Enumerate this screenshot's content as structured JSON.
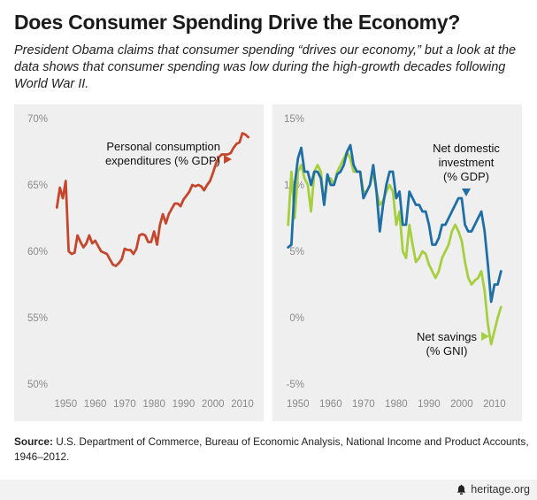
{
  "header": {
    "title": "Does Consumer Spending Drive the Economy?",
    "subtitle": "President Obama claims that consumer spending “drives our economy,” but a look at the data shows that consumer spending was low during the high-growth decades following World War II."
  },
  "source": {
    "label": "Source:",
    "text": "U.S. Department of Commerce, Bureau of Economic Analysis, National Income and Product Accounts, 1946–2012."
  },
  "footer": {
    "brand": "heritage.org",
    "logo_icon": "bell-icon"
  },
  "colors": {
    "pce": "#c4472d",
    "investment": "#1f6fa6",
    "savings": "#a6cf3f",
    "panel": "#efefef",
    "tick": "#8a8a8a"
  },
  "chart_data": [
    {
      "type": "line",
      "title": "",
      "xlabel": "",
      "ylabel": "",
      "xlim": [
        1946,
        2013
      ],
      "ylim": [
        50,
        70
      ],
      "yticks": [
        50,
        55,
        60,
        65,
        70
      ],
      "ytick_labels": [
        "50%",
        "55%",
        "60%",
        "65%",
        "70%"
      ],
      "xticks": [
        1950,
        1960,
        1970,
        1980,
        1990,
        2000,
        2010
      ],
      "xtick_labels": [
        "1950",
        "1960",
        "1970",
        "1980",
        "1990",
        "2000",
        "2010"
      ],
      "grid": false,
      "x": [
        1947,
        1948,
        1949,
        1950,
        1951,
        1952,
        1953,
        1954,
        1955,
        1956,
        1957,
        1958,
        1959,
        1960,
        1961,
        1962,
        1963,
        1964,
        1965,
        1966,
        1967,
        1968,
        1969,
        1970,
        1971,
        1972,
        1973,
        1974,
        1975,
        1976,
        1977,
        1978,
        1979,
        1980,
        1981,
        1982,
        1983,
        1984,
        1985,
        1986,
        1987,
        1988,
        1989,
        1990,
        1991,
        1992,
        1993,
        1994,
        1995,
        1996,
        1997,
        1998,
        1999,
        2000,
        2001,
        2002,
        2003,
        2004,
        2005,
        2006,
        2007,
        2008,
        2009,
        2010,
        2011,
        2012
      ],
      "series": [
        {
          "name": "Personal consumption expenditures (% GDP)",
          "color": "#c4472d",
          "values": [
            63.3,
            64.8,
            64.0,
            65.3,
            60.0,
            59.8,
            59.9,
            61.2,
            60.7,
            60.3,
            60.6,
            61.2,
            60.6,
            60.8,
            60.4,
            60.0,
            59.9,
            59.8,
            59.4,
            59.0,
            58.9,
            59.1,
            59.4,
            60.2,
            60.1,
            60.1,
            59.8,
            60.2,
            61.2,
            61.3,
            61.2,
            60.7,
            60.7,
            61.5,
            60.5,
            62.0,
            62.8,
            62.1,
            62.8,
            63.2,
            63.6,
            63.6,
            63.4,
            63.9,
            64.2,
            64.5,
            65.0,
            64.9,
            65.0,
            64.9,
            64.6,
            65.0,
            65.3,
            65.9,
            66.6,
            67.1,
            67.3,
            67.3,
            67.3,
            67.4,
            67.8,
            68.1,
            68.2,
            68.9,
            68.8,
            68.6
          ]
        }
      ],
      "annotations": [
        {
          "text_lines": [
            "Personal consumption",
            "expenditures (% GDP)"
          ],
          "marker": "right-triangle"
        }
      ]
    },
    {
      "type": "line",
      "title": "",
      "xlabel": "",
      "ylabel": "",
      "xlim": [
        1946,
        2013
      ],
      "ylim": [
        -5,
        15
      ],
      "yticks": [
        -5,
        0,
        5,
        10,
        15
      ],
      "ytick_labels": [
        "-5%",
        "0%",
        "5%",
        "10%",
        "15%"
      ],
      "xticks": [
        1950,
        1960,
        1970,
        1980,
        1990,
        2000,
        2010
      ],
      "xtick_labels": [
        "1950",
        "1960",
        "1970",
        "1980",
        "1990",
        "2000",
        "2010"
      ],
      "grid": false,
      "x": [
        1947,
        1948,
        1949,
        1950,
        1951,
        1952,
        1953,
        1954,
        1955,
        1956,
        1957,
        1958,
        1959,
        1960,
        1961,
        1962,
        1963,
        1964,
        1965,
        1966,
        1967,
        1968,
        1969,
        1970,
        1971,
        1972,
        1973,
        1974,
        1975,
        1976,
        1977,
        1978,
        1979,
        1980,
        1981,
        1982,
        1983,
        1984,
        1985,
        1986,
        1987,
        1988,
        1989,
        1990,
        1991,
        1992,
        1993,
        1994,
        1995,
        1996,
        1997,
        1998,
        1999,
        2000,
        2001,
        2002,
        2003,
        2004,
        2005,
        2006,
        2007,
        2008,
        2009,
        2010,
        2011,
        2012
      ],
      "series": [
        {
          "name": "Net savings (% GNI)",
          "color": "#a6cf3f",
          "values": [
            7.0,
            11.0,
            7.5,
            11.0,
            11.5,
            10.5,
            10.0,
            8.0,
            11.0,
            11.5,
            11.0,
            8.5,
            10.5,
            10.5,
            10.0,
            11.0,
            11.5,
            12.0,
            12.5,
            12.0,
            11.0,
            11.0,
            11.0,
            9.5,
            9.5,
            10.0,
            11.0,
            9.5,
            8.5,
            8.8,
            9.5,
            10.0,
            9.5,
            7.0,
            8.0,
            5.0,
            4.5,
            7.0,
            5.5,
            4.2,
            4.5,
            5.0,
            4.8,
            4.0,
            3.5,
            3.0,
            3.5,
            4.5,
            5.0,
            5.5,
            6.5,
            7.0,
            6.5,
            5.8,
            4.2,
            3.0,
            2.5,
            2.8,
            3.0,
            3.5,
            2.0,
            -0.5,
            -2.0,
            -1.0,
            0.0,
            0.8
          ]
        },
        {
          "name": "Net domestic investment (% GDP)",
          "color": "#1f6fa6",
          "values": [
            5.3,
            5.5,
            10.0,
            12.0,
            12.8,
            11.0,
            11.0,
            10.0,
            11.0,
            11.0,
            10.5,
            8.5,
            10.8,
            10.0,
            10.0,
            10.8,
            11.0,
            11.5,
            12.5,
            13.0,
            11.5,
            11.0,
            11.0,
            9.0,
            9.5,
            10.0,
            11.5,
            9.5,
            6.5,
            8.5,
            10.0,
            11.0,
            11.0,
            9.0,
            9.5,
            7.0,
            7.0,
            9.5,
            9.0,
            8.5,
            8.5,
            8.0,
            8.0,
            7.0,
            5.5,
            5.5,
            6.0,
            7.0,
            7.0,
            7.5,
            8.0,
            8.5,
            9.0,
            9.0,
            7.0,
            6.5,
            6.5,
            7.0,
            7.5,
            8.0,
            6.5,
            4.0,
            1.2,
            2.5,
            2.5,
            3.5
          ]
        }
      ],
      "annotations": [
        {
          "text_lines": [
            "Net domestic",
            "investment",
            "(% GDP)"
          ],
          "marker": "down-triangle"
        },
        {
          "text_lines": [
            "Net savings",
            "(% GNI)"
          ],
          "marker": "right-triangle"
        }
      ]
    }
  ]
}
